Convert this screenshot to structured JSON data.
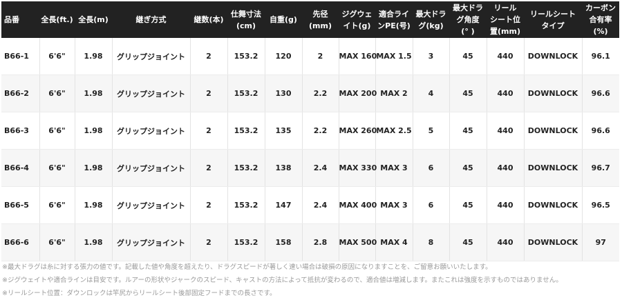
{
  "table": {
    "headers": [
      "品番",
      "全長(ft.)",
      "全長(m)",
      "継ぎ方式",
      "継数(本)",
      "仕舞寸法\n(cm)",
      "自重(g)",
      "先径\n(mm)",
      "ジグウェ\nイト(g)",
      "適合ライ\nンPE(号)",
      "最大ドラ\nグ(kg)",
      "最大ドラ\nグ角度\n(° )",
      "リール\nシート位\n置(mm)",
      "リールシート\nタイプ",
      "カーボン\n合有率\n(%)"
    ],
    "rows": [
      [
        "B66-1",
        "6'6\"",
        "1.98",
        "グリップジョイント",
        "2",
        "153.2",
        "120",
        "2",
        "MAX 160",
        "MAX 1.5",
        "3",
        "45",
        "440",
        "DOWNLOCK",
        "96.1"
      ],
      [
        "B66-2",
        "6'6\"",
        "1.98",
        "グリップジョイント",
        "2",
        "153.2",
        "130",
        "2.2",
        "MAX 200",
        "MAX 2",
        "4",
        "45",
        "440",
        "DOWNLOCK",
        "96.6"
      ],
      [
        "B66-3",
        "6'6\"",
        "1.98",
        "グリップジョイント",
        "2",
        "153.2",
        "135",
        "2.2",
        "MAX 260",
        "MAX 2.5",
        "5",
        "45",
        "440",
        "DOWNLOCK",
        "96.6"
      ],
      [
        "B66-4",
        "6'6\"",
        "1.98",
        "グリップジョイント",
        "2",
        "153.2",
        "138",
        "2.4",
        "MAX 330",
        "MAX 3",
        "6",
        "45",
        "440",
        "DOWNLOCK",
        "96.7"
      ],
      [
        "B66-5",
        "6'6\"",
        "1.98",
        "グリップジョイント",
        "2",
        "153.2",
        "147",
        "2.4",
        "MAX 400",
        "MAX 3",
        "6",
        "45",
        "440",
        "DOWNLOCK",
        "96.5"
      ],
      [
        "B66-6",
        "6'6\"",
        "1.98",
        "グリップジョイント",
        "2",
        "153.2",
        "158",
        "2.8",
        "MAX 500",
        "MAX 4",
        "8",
        "45",
        "440",
        "DOWNLOCK",
        "97"
      ]
    ]
  },
  "notes": [
    "※最大ドラグは糸に対する張力の値です。記載した値や角度を超えたり、ドラグスピードが著しく速い場合は破損の原因になりますことを、ご留意お願いいたします。",
    "※ジグウェイトや適合ラインは目安です。ルアーの形状やジャークのスピード、キャストの方法によって抵抗が変わるので、適合値は増減します。またこれは強度を示すものではありません。",
    "※リールシート位置：ダウンロックは竿尻からリールシート後部固定フードまでの長さです。"
  ]
}
